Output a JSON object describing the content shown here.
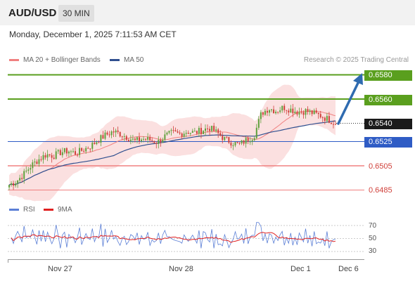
{
  "header": {
    "symbol": "AUD/USD",
    "timeframe": "30 MIN"
  },
  "datetime": "Monday, December 1, 2025 7:11:53 AM CET",
  "legend": {
    "ma20_label": "MA 20 + Bollinger Bands",
    "ma50_label": "MA 50",
    "ma20_color": "#f08080",
    "ma50_color": "#2f4f8f",
    "copyright": "Research © 2025 Trading Central"
  },
  "levels": {
    "resistance_2": "0.6580",
    "resistance_1": "0.6560",
    "last_price": "0.6540",
    "pivot": "0.6525",
    "support_1": "0.6505",
    "support_2": "0.6485"
  },
  "rsi_legend": {
    "rsi_label": "RSI",
    "ma_label": "9MA",
    "rsi_color": "#5b7fd6",
    "ma_color": "#e02020"
  },
  "rsi_ticks": [
    "70",
    "50",
    "30"
  ],
  "x_ticks": [
    "Nov 27",
    "Nov 28",
    "Dec 1",
    "Dec 6"
  ],
  "colors": {
    "up_candle": "#5fa03b",
    "down_candle": "#d0403a",
    "resistance_line": "#5a9f1e",
    "pivot_line": "#2f5cc5",
    "support_line": "#f08080",
    "arrow": "#2f6bb0",
    "bollinger_fill": "#fbe0e0"
  },
  "chart_data": {
    "type": "candlestick",
    "symbol": "AUD/USD",
    "interval": "30 MIN",
    "ylim": [
      0.648,
      0.6585
    ],
    "close_series_approx": [
      0.6489,
      0.6492,
      0.6498,
      0.6505,
      0.651,
      0.6514,
      0.6513,
      0.6516,
      0.6517,
      0.6515,
      0.6518,
      0.6521,
      0.6526,
      0.653,
      0.6533,
      0.6531,
      0.6528,
      0.6525,
      0.6527,
      0.6526,
      0.6524,
      0.6529,
      0.6532,
      0.6531,
      0.6533,
      0.6532,
      0.6534,
      0.6536,
      0.6532,
      0.6527,
      0.6524,
      0.6522,
      0.6526,
      0.6529,
      0.6548,
      0.6552,
      0.655,
      0.6553,
      0.6551,
      0.6549,
      0.655,
      0.6548,
      0.6546,
      0.6543,
      0.654
    ],
    "target_level": 0.658,
    "rsi": {
      "ylim": [
        20,
        80
      ],
      "levels": [
        70,
        50,
        30
      ]
    }
  }
}
